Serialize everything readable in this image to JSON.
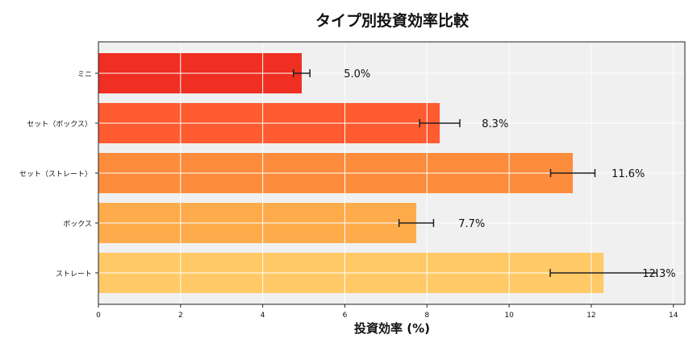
{
  "chart_data": {
    "type": "bar",
    "orientation": "horizontal",
    "title": "タイプ別投資効率比較",
    "xlabel": "投資効率 (%)",
    "ylabel": "",
    "categories": [
      "ミニ",
      "セット（ボックス）",
      "セット（ストレート）",
      "ボックス",
      "ストレート"
    ],
    "values": [
      4.95,
      8.31,
      11.55,
      7.74,
      12.3
    ],
    "errors": [
      0.2,
      0.49,
      0.54,
      0.42,
      1.3
    ],
    "data_labels": [
      "5.0%",
      "8.3%",
      "11.6%",
      "7.7%",
      "12.3%"
    ],
    "colors": [
      "#ee2f22",
      "#fe5b30",
      "#fd8c3d",
      "#feab4b",
      "#fec966"
    ],
    "xlim": [
      0,
      14.28
    ],
    "xticks": [
      0,
      2,
      4,
      6,
      8,
      10,
      12,
      14
    ],
    "grid": true,
    "background": "#f0f0f0"
  }
}
